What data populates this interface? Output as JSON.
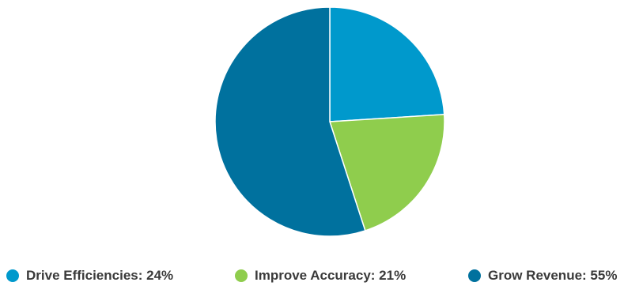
{
  "chart_data": {
    "type": "pie",
    "slices": [
      {
        "label": "Drive Efficiencies",
        "value": 24,
        "color": "#0099cc"
      },
      {
        "label": "Improve Accuracy",
        "value": 21,
        "color": "#8fcd4d"
      },
      {
        "label": "Grow Revenue",
        "value": 55,
        "color": "#00719e"
      }
    ],
    "legend": [
      "Drive Efficiencies: 24%",
      "Improve Accuracy: 21%",
      "Grow Revenue: 55%"
    ],
    "legend_position": "bottom",
    "start_angle": "12 o'clock",
    "direction": "clockwise"
  }
}
